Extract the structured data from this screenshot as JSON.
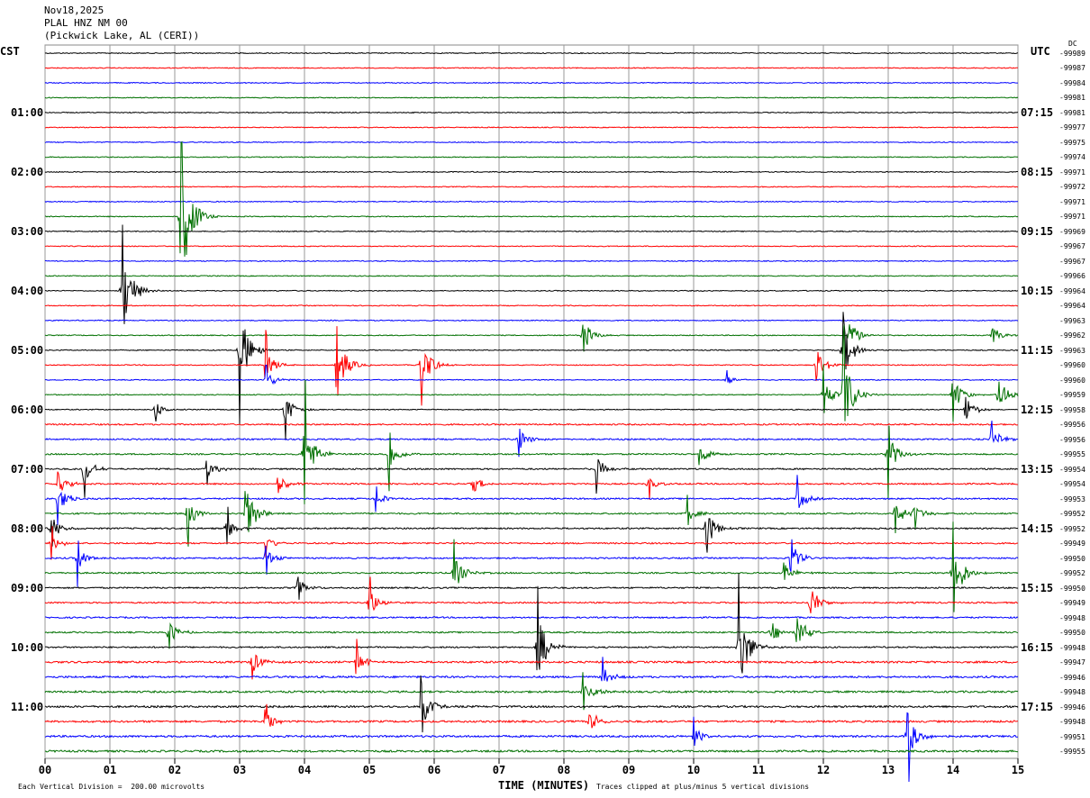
{
  "header": {
    "date": "Nov18,2025",
    "station": "PLAL HNZ NM 00",
    "location": "(Pickwick Lake, AL (CERI))"
  },
  "left_tz": "CST",
  "right_tz": "UTC",
  "dc_label": "DC",
  "footer": {
    "scale": "Each Vertical Division =  200.00 microvolts",
    "xlabel": "TIME (MINUTES)",
    "clip": "Traces clipped at plus/minus 5 vertical divisions"
  },
  "colors": [
    "#000000",
    "#ff0000",
    "#0000ff",
    "#007000"
  ],
  "chart_data": {
    "type": "line",
    "title": "PLAL HNZ NM 00 helicorder",
    "xlabel": "TIME (MINUTES)",
    "xlim": [
      0,
      15
    ],
    "x_ticks": [
      "00",
      "01",
      "02",
      "03",
      "04",
      "05",
      "06",
      "07",
      "08",
      "09",
      "10",
      "11",
      "12",
      "13",
      "14",
      "15"
    ],
    "left_labels": [
      "01:00",
      "02:00",
      "03:00",
      "04:00",
      "05:00",
      "06:00",
      "07:00",
      "08:00",
      "09:00",
      "10:00",
      "11:00"
    ],
    "right_labels": [
      "07:15",
      "08:15",
      "09:15",
      "10:15",
      "11:15",
      "12:15",
      "13:15",
      "14:15",
      "15:15",
      "16:15",
      "17:15"
    ],
    "dc_offsets": [
      "-99989",
      "-99987",
      "-99984",
      "-99981",
      "-99981",
      "-99977",
      "-99975",
      "-99974",
      "-99971",
      "-99972",
      "-99971",
      "-99971",
      "-99969",
      "-99967",
      "-99967",
      "-99966",
      "-99964",
      "-99964",
      "-99963",
      "-99962",
      "-99963",
      "-99960",
      "-99960",
      "-99959",
      "-99958",
      "-99956",
      "-99956",
      "-99955",
      "-99954",
      "-99954",
      "-99953",
      "-99952",
      "-99952",
      "-99949",
      "-99950",
      "-99952",
      "-99950",
      "-99949",
      "-99948",
      "-99950",
      "-99948",
      "-99947",
      "-99946",
      "-99948",
      "-99946",
      "-99948",
      "-99951",
      "-99955"
    ],
    "events": [
      [
        11,
        2.1,
        5
      ],
      [
        16,
        1.2,
        3
      ],
      [
        20,
        3.0,
        3
      ],
      [
        20,
        12.3,
        2
      ],
      [
        19,
        8.3,
        1
      ],
      [
        19,
        12.4,
        1
      ],
      [
        19,
        14.6,
        0.6
      ],
      [
        21,
        3.4,
        1
      ],
      [
        21,
        4.5,
        2
      ],
      [
        21,
        5.8,
        1.8
      ],
      [
        21,
        11.9,
        1
      ],
      [
        22,
        3.4,
        0.7
      ],
      [
        22,
        10.5,
        0.4
      ],
      [
        23,
        12.0,
        1
      ],
      [
        23,
        12.3,
        3
      ],
      [
        23,
        14.0,
        1.2
      ],
      [
        23,
        14.7,
        1.2
      ],
      [
        24,
        1.7,
        0.6
      ],
      [
        24,
        3.7,
        1
      ],
      [
        24,
        14.2,
        0.8
      ],
      [
        26,
        7.3,
        0.8
      ],
      [
        26,
        14.6,
        0.8
      ],
      [
        27,
        4.0,
        2.5
      ],
      [
        27,
        5.3,
        1.2
      ],
      [
        27,
        10.1,
        0.8
      ],
      [
        27,
        13.0,
        1.4
      ],
      [
        28,
        0.6,
        1
      ],
      [
        28,
        2.5,
        0.6
      ],
      [
        28,
        8.5,
        0.8
      ],
      [
        29,
        0.2,
        0.8
      ],
      [
        29,
        3.6,
        0.6
      ],
      [
        29,
        6.6,
        0.6
      ],
      [
        29,
        9.3,
        0.5
      ],
      [
        30,
        0.2,
        1
      ],
      [
        30,
        5.1,
        0.5
      ],
      [
        30,
        11.6,
        0.8
      ],
      [
        31,
        2.2,
        1
      ],
      [
        31,
        3.1,
        2
      ],
      [
        31,
        9.9,
        0.6
      ],
      [
        31,
        13.1,
        1
      ],
      [
        31,
        13.4,
        0.6
      ],
      [
        32,
        0.1,
        0.8
      ],
      [
        32,
        2.8,
        0.8
      ],
      [
        32,
        10.2,
        1.2
      ],
      [
        33,
        0.1,
        0.6
      ],
      [
        33,
        3.4,
        0.5
      ],
      [
        34,
        0.5,
        0.8
      ],
      [
        34,
        3.4,
        0.6
      ],
      [
        34,
        11.5,
        1
      ],
      [
        35,
        6.3,
        1.2
      ],
      [
        35,
        11.4,
        0.6
      ],
      [
        35,
        14.0,
        2.5
      ],
      [
        36,
        3.9,
        0.6
      ],
      [
        37,
        5.0,
        1
      ],
      [
        37,
        11.8,
        1.2
      ],
      [
        39,
        1.9,
        0.8
      ],
      [
        39,
        11.2,
        0.8
      ],
      [
        39,
        11.6,
        1.2
      ],
      [
        40,
        7.6,
        2.2
      ],
      [
        40,
        10.7,
        3
      ],
      [
        41,
        3.2,
        0.8
      ],
      [
        41,
        4.8,
        0.8
      ],
      [
        42,
        8.6,
        0.7
      ],
      [
        43,
        8.3,
        1.2
      ],
      [
        44,
        5.8,
        1.5
      ],
      [
        45,
        3.4,
        0.8
      ],
      [
        45,
        8.4,
        0.8
      ],
      [
        46,
        13.3,
        1.6
      ],
      [
        46,
        10.0,
        0.6
      ]
    ]
  }
}
